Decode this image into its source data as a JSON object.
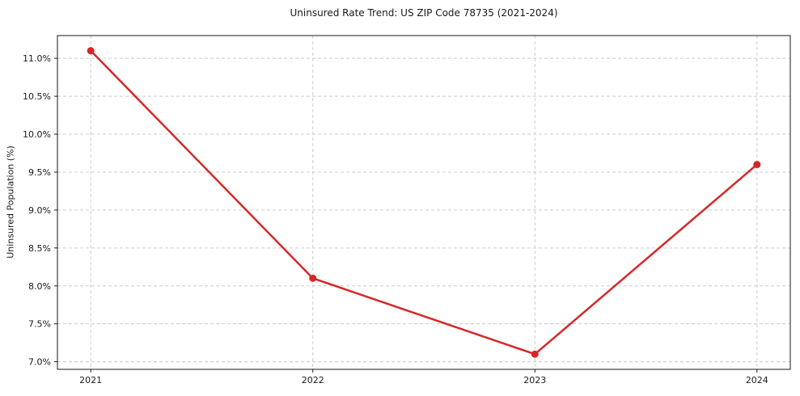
{
  "figure": {
    "title": "Uninsured Rate Trend: US ZIP Code 78735 (2021-2024)",
    "ylabel": "Uninsured Population (%)"
  },
  "chart_data": {
    "type": "line",
    "title": "Uninsured Rate Trend: US ZIP Code 78735 (2021-2024)",
    "xlabel": "",
    "ylabel": "Uninsured Population (%)",
    "x": [
      2021,
      2022,
      2023,
      2024
    ],
    "y": [
      11.1,
      8.1,
      7.1,
      9.6
    ],
    "xlim": [
      2020.85,
      2024.15
    ],
    "ylim": [
      6.9,
      11.3
    ],
    "x_ticks": {
      "values": [
        2021,
        2022,
        2023,
        2024
      ],
      "labels": [
        "2021",
        "2022",
        "2023",
        "2024"
      ]
    },
    "y_ticks": {
      "values": [
        7.0,
        7.5,
        8.0,
        8.5,
        9.0,
        9.5,
        10.0,
        10.5,
        11.0
      ],
      "labels": [
        "7.0%",
        "7.5%",
        "8.0%",
        "8.5%",
        "9.0%",
        "9.5%",
        "10.0%",
        "10.5%",
        "11.0%"
      ]
    },
    "grid": true,
    "legend": "none",
    "colors": {
      "line": "#d62728",
      "marker": "#d62728",
      "grid": "#cccccc",
      "spine": "#1a1a1a",
      "text": "#1a1a1a",
      "background": "#ffffff"
    }
  }
}
